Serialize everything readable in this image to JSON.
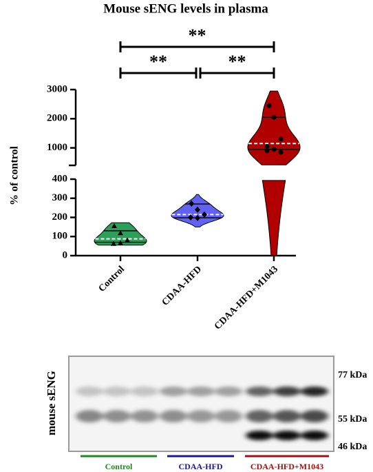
{
  "chart_data": {
    "type": "violin",
    "title": "Mouse sENG levels in plasma",
    "ylabel": "% of control",
    "ylim": [
      0,
      400
    ],
    "yticks": [
      0,
      100,
      200,
      300,
      400
    ],
    "upper_ylim": [
      400,
      3000
    ],
    "upper_yticks": [
      1000,
      2000,
      3000
    ],
    "categories": [
      "Control",
      "CDAA-HFD",
      "CDAA-HFD+M1043"
    ],
    "series": [
      {
        "name": "Control",
        "color": "#2e9e5b",
        "marker": "triangle",
        "points": [
          155,
          118,
          80,
          62,
          66
        ],
        "median": 88,
        "q1": 70,
        "q3": 130,
        "min": 55,
        "max": 172
      },
      {
        "name": "CDAA-HFD",
        "color": "#6161f2",
        "marker": "diamond",
        "points": [
          272,
          240,
          215,
          200,
          197
        ],
        "median": 215,
        "q1": 198,
        "q3": 270,
        "min": 150,
        "max": 320
      },
      {
        "name": "CDAA-HFD+M1043",
        "color": "#b00000",
        "marker": "circle",
        "points": [
          2450,
          2050,
          1300,
          1050,
          950,
          850,
          900
        ],
        "median": 1150,
        "q1": 950,
        "q3": 2050,
        "min": 0,
        "max": 2950
      }
    ],
    "comparisons": [
      {
        "from": 0,
        "to": 2,
        "label": "**"
      },
      {
        "from": 0,
        "to": 1,
        "label": "**"
      },
      {
        "from": 1,
        "to": 2,
        "label": "**"
      }
    ],
    "blot": {
      "label": "mouse sENG",
      "markers": [
        "77 kDa",
        "55 kDa",
        "46 kDa"
      ],
      "groups": [
        {
          "name": "Control",
          "color": "#1e8a1e"
        },
        {
          "name": "CDAA-HFD",
          "color": "#1a1a8c"
        },
        {
          "name": "CDAA-HFD+M1043",
          "color": "#a01010"
        }
      ]
    }
  }
}
